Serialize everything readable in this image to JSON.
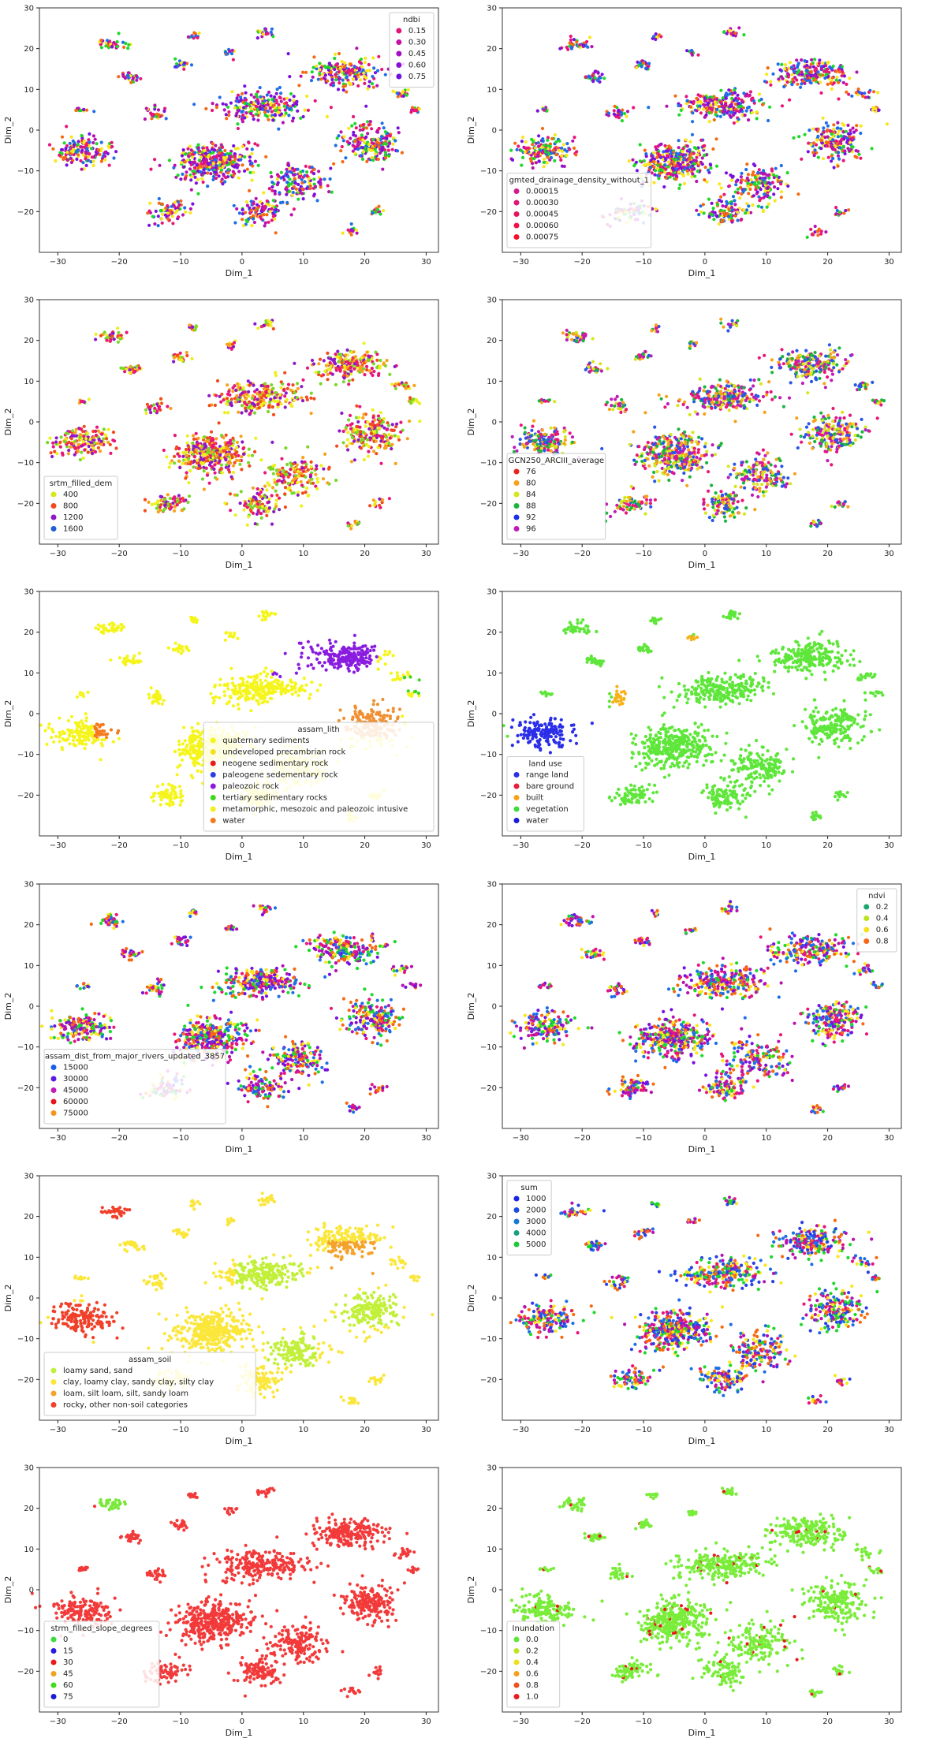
{
  "chart_data": [
    {
      "type": "scatter",
      "xlabel": "Dim_1",
      "ylabel": "Dim_2",
      "xlim": [
        -33,
        32
      ],
      "ylim": [
        -30,
        30
      ],
      "xticks": [
        -30,
        -20,
        -10,
        0,
        10,
        20,
        30
      ],
      "yticks": [
        -20,
        -10,
        0,
        10,
        20,
        30
      ],
      "legend": {
        "title": "ndbi",
        "placement": "top-right",
        "entries": [
          {
            "label": "0.15",
            "color": "#e0157a"
          },
          {
            "label": "0.30",
            "color": "#c411a8"
          },
          {
            "label": "0.45",
            "color": "#a30fc4"
          },
          {
            "label": "0.60",
            "color": "#8a10d8"
          },
          {
            "label": "0.75",
            "color": "#7210e0"
          }
        ]
      },
      "coloring": "mixed",
      "palette": [
        "#e8157a",
        "#b612b0",
        "#7a10e0",
        "#f7e71c",
        "#1fd82a",
        "#1e6ee8",
        "#f56a10"
      ]
    },
    {
      "type": "scatter",
      "xlabel": "Dim_1",
      "ylabel": "Dim_2",
      "xlim": [
        -33,
        32
      ],
      "ylim": [
        -30,
        30
      ],
      "xticks": [
        -30,
        -20,
        -10,
        0,
        10,
        20,
        30
      ],
      "yticks": [
        -20,
        -10,
        0,
        10,
        20,
        30
      ],
      "legend": {
        "title": "gmted_drainage_density_without_1",
        "placement": "lower-left",
        "entries": [
          {
            "label": "0.00015",
            "color": "#d01a8c"
          },
          {
            "label": "0.00030",
            "color": "#dc1776"
          },
          {
            "label": "0.00045",
            "color": "#e5145f"
          },
          {
            "label": "0.00060",
            "color": "#ee1248"
          },
          {
            "label": "0.00075",
            "color": "#f5102e"
          }
        ]
      },
      "coloring": "mixed",
      "palette": [
        "#e8157a",
        "#b612b0",
        "#7a10e0",
        "#f7e71c",
        "#1fd82a",
        "#1e6ee8",
        "#f56a10"
      ]
    },
    {
      "type": "scatter",
      "xlabel": "Dim_1",
      "ylabel": "Dim_2",
      "xlim": [
        -33,
        32
      ],
      "ylim": [
        -30,
        30
      ],
      "xticks": [
        -30,
        -20,
        -10,
        0,
        10,
        20,
        30
      ],
      "yticks": [
        -20,
        -10,
        0,
        10,
        20,
        30
      ],
      "legend": {
        "title": "srtm_filled_dem",
        "placement": "lower-left",
        "entries": [
          {
            "label": "400",
            "color": "#d4e81a"
          },
          {
            "label": "800",
            "color": "#f24a1a"
          },
          {
            "label": "1200",
            "color": "#8d18c8"
          },
          {
            "label": "1600",
            "color": "#1f5cd8"
          }
        ]
      },
      "coloring": "mixed",
      "palette": [
        "#ecf01c",
        "#f24a1a",
        "#e8157a",
        "#8d18c8",
        "#f7a21a",
        "#7ad82a"
      ]
    },
    {
      "type": "scatter",
      "xlabel": "Dim_1",
      "ylabel": "Dim_2",
      "xlim": [
        -33,
        32
      ],
      "ylim": [
        -30,
        30
      ],
      "xticks": [
        -30,
        -20,
        -10,
        0,
        10,
        20,
        30
      ],
      "yticks": [
        -20,
        -10,
        0,
        10,
        20,
        30
      ],
      "legend": {
        "title": "GCN250_ARCIII_average",
        "placement": "lower-left",
        "entries": [
          {
            "label": "76",
            "color": "#e8231c"
          },
          {
            "label": "80",
            "color": "#f7a21a"
          },
          {
            "label": "84",
            "color": "#d6e61c"
          },
          {
            "label": "88",
            "color": "#1db43e"
          },
          {
            "label": "92",
            "color": "#1a2ee8"
          },
          {
            "label": "96",
            "color": "#c01ab8"
          }
        ]
      },
      "coloring": "mixed",
      "palette": [
        "#2a56e8",
        "#f7a21a",
        "#e8157a",
        "#1db43e",
        "#d6e61c",
        "#c01ab8"
      ]
    },
    {
      "type": "scatter",
      "xlabel": "Dim_1",
      "ylabel": "Dim_2",
      "xlim": [
        -33,
        32
      ],
      "ylim": [
        -30,
        30
      ],
      "xticks": [
        -30,
        -20,
        -10,
        0,
        10,
        20,
        30
      ],
      "yticks": [
        -20,
        -10,
        0,
        10,
        20,
        30
      ],
      "legend": {
        "title": "assam_lith",
        "placement": "lower-right",
        "entries": [
          {
            "label": "quaternary sediments",
            "color": "#f5f51c"
          },
          {
            "label": "undeveloped precambrian rock",
            "color": "#f2e11c"
          },
          {
            "label": "neogene sedimentary rock",
            "color": "#e81c1c"
          },
          {
            "label": "paleogene sedementary rock",
            "color": "#2a3ee8"
          },
          {
            "label": "paleozoic rock",
            "color": "#8a1ce0"
          },
          {
            "label": "tertiary sedimentary rocks",
            "color": "#3cd81c"
          },
          {
            "label": "metamorphic, mesozoic and paleozoic intusive",
            "color": "#f0f01c"
          },
          {
            "label": "water",
            "color": "#f57a1c"
          }
        ]
      },
      "coloring": "regions",
      "default": "#f5f51c",
      "regions": [
        {
          "color": "#8a1ce0",
          "cx": [
            5,
            22
          ],
          "cy": [
            9,
            24
          ]
        },
        {
          "color": "#f09032",
          "cx": [
            15,
            26
          ],
          "cy": [
            -6,
            8
          ]
        },
        {
          "color": "#3cd81c",
          "cx": [
            26,
            30
          ],
          "cy": [
            5,
            9
          ]
        },
        {
          "color": "#f57a1c",
          "cx": [
            -24,
            -20
          ],
          "cy": [
            -6,
            -2
          ]
        }
      ]
    },
    {
      "type": "scatter",
      "xlabel": "Dim_1",
      "ylabel": "Dim_2",
      "xlim": [
        -33,
        32
      ],
      "ylim": [
        -30,
        30
      ],
      "xticks": [
        -30,
        -20,
        -10,
        0,
        10,
        20,
        30
      ],
      "yticks": [
        -20,
        -10,
        0,
        10,
        20,
        30
      ],
      "legend": {
        "title": "land use",
        "placement": "lower-left",
        "entries": [
          {
            "label": "range land",
            "color": "#2a2ee8"
          },
          {
            "label": "bare ground",
            "color": "#e81c3c"
          },
          {
            "label": "built",
            "color": "#f7a21a"
          },
          {
            "label": "vegetation",
            "color": "#3cdc3c"
          },
          {
            "label": "water",
            "color": "#1a1ad8"
          }
        ]
      },
      "coloring": "regions",
      "default": "#5ee63a",
      "regions": [
        {
          "color": "#2a2ee8",
          "cx": [
            -32,
            -18
          ],
          "cy": [
            -10,
            1
          ]
        },
        {
          "color": "#f7b21a",
          "cx": [
            -15,
            -8
          ],
          "cy": [
            2,
            8
          ]
        },
        {
          "color": "#f7b21a",
          "cx": [
            -4,
            0
          ],
          "cy": [
            14,
            19
          ]
        },
        {
          "color": "#e81c5c",
          "cx": [
            -24,
            -19
          ],
          "cy": [
            8,
            12
          ]
        }
      ]
    },
    {
      "type": "scatter",
      "xlabel": "Dim_1",
      "ylabel": "Dim_2",
      "xlim": [
        -33,
        32
      ],
      "ylim": [
        -30,
        30
      ],
      "xticks": [
        -30,
        -20,
        -10,
        0,
        10,
        20,
        30
      ],
      "yticks": [
        -20,
        -10,
        0,
        10,
        20,
        30
      ],
      "legend": {
        "title": "assam_dist_from_major_rivers_updated_3857",
        "placement": "lower-left",
        "entries": [
          {
            "label": "15000",
            "color": "#1a5ee8"
          },
          {
            "label": "30000",
            "color": "#5a1ae8"
          },
          {
            "label": "45000",
            "color": "#c01ab8"
          },
          {
            "label": "60000",
            "color": "#e8141c"
          },
          {
            "label": "75000",
            "color": "#f7921a"
          }
        ]
      },
      "coloring": "mixed",
      "palette": [
        "#e8157a",
        "#b612b0",
        "#7a10e0",
        "#f7e71c",
        "#1fd82a",
        "#1e6ee8",
        "#f56a10"
      ]
    },
    {
      "type": "scatter",
      "xlabel": "Dim_1",
      "ylabel": "Dim_2",
      "xlim": [
        -33,
        32
      ],
      "ylim": [
        -30,
        30
      ],
      "xticks": [
        -30,
        -20,
        -10,
        0,
        10,
        20,
        30
      ],
      "yticks": [
        -20,
        -10,
        0,
        10,
        20,
        30
      ],
      "legend": {
        "title": "ndvi",
        "placement": "top-right",
        "entries": [
          {
            "label": "0.2",
            "color": "#1aa86e"
          },
          {
            "label": "0.4",
            "color": "#b8e41c"
          },
          {
            "label": "0.6",
            "color": "#f7e01c"
          },
          {
            "label": "0.8",
            "color": "#f5661a"
          }
        ]
      },
      "coloring": "mixed",
      "palette": [
        "#e8157a",
        "#b612b0",
        "#7a10e0",
        "#f7e71c",
        "#1fd82a",
        "#1e6ee8",
        "#f56a10"
      ]
    },
    {
      "type": "scatter",
      "xlabel": "Dim_1",
      "ylabel": "Dim_2",
      "xlim": [
        -33,
        32
      ],
      "ylim": [
        -30,
        30
      ],
      "xticks": [
        -30,
        -20,
        -10,
        0,
        10,
        20,
        30
      ],
      "yticks": [
        -20,
        -10,
        0,
        10,
        20,
        30
      ],
      "legend": {
        "title": "assam_soil",
        "placement": "lower-left",
        "entries": [
          {
            "label": "loamy sand, sand",
            "color": "#c2f03a"
          },
          {
            "label": "clay, loamy clay, sandy clay, silty clay",
            "color": "#fbe63a"
          },
          {
            "label": "loam, silt loam, silt, sandy loam",
            "color": "#f5a22a"
          },
          {
            "label": "rocky, other non-soil categories",
            "color": "#f0402a"
          }
        ]
      },
      "coloring": "regions",
      "default": "#fbe63a",
      "regions": [
        {
          "color": "#c2f03a",
          "cx": [
            -1,
            10
          ],
          "cy": [
            1,
            10
          ]
        },
        {
          "color": "#c2f03a",
          "cx": [
            15,
            26
          ],
          "cy": [
            -7,
            2
          ]
        },
        {
          "color": "#c2f03a",
          "cx": [
            4,
            12
          ],
          "cy": [
            -17,
            -8
          ]
        },
        {
          "color": "#f0402a",
          "cx": [
            -31,
            -19
          ],
          "cy": [
            -10,
            -1
          ]
        },
        {
          "color": "#f5a22a",
          "cx": [
            14,
            22
          ],
          "cy": [
            5,
            14
          ]
        },
        {
          "color": "#f0402a",
          "cx": [
            -24,
            -18
          ],
          "cy": [
            18,
            23
          ]
        }
      ]
    },
    {
      "type": "scatter",
      "xlabel": "Dim_1",
      "ylabel": "Dim_2",
      "xlim": [
        -33,
        32
      ],
      "ylim": [
        -30,
        30
      ],
      "xticks": [
        -30,
        -20,
        -10,
        0,
        10,
        20,
        30
      ],
      "yticks": [
        -20,
        -10,
        0,
        10,
        20,
        30
      ],
      "legend": {
        "title": "sum",
        "placement": "top-left",
        "entries": [
          {
            "label": "1000",
            "color": "#1a24e8"
          },
          {
            "label": "2000",
            "color": "#1a4ce0"
          },
          {
            "label": "3000",
            "color": "#1a7ad0"
          },
          {
            "label": "4000",
            "color": "#1a9e7e"
          },
          {
            "label": "5000",
            "color": "#1ec83c"
          }
        ]
      },
      "coloring": "mixed",
      "palette": [
        "#e8157a",
        "#b612b0",
        "#2a3ee8",
        "#f7e71c",
        "#1fd82a",
        "#1e6ee8",
        "#f56a10"
      ]
    },
    {
      "type": "scatter",
      "xlabel": "Dim_1",
      "ylabel": "Dim_2",
      "xlim": [
        -33,
        32
      ],
      "ylim": [
        -30,
        30
      ],
      "xticks": [
        -30,
        -20,
        -10,
        0,
        10,
        20,
        30
      ],
      "yticks": [
        -20,
        -10,
        0,
        10,
        20,
        30
      ],
      "legend": {
        "title": "strm_filled_slope_degrees",
        "placement": "lower-left",
        "entries": [
          {
            "label": "0",
            "color": "#3cdc3c"
          },
          {
            "label": "15",
            "color": "#2a1ae8"
          },
          {
            "label": "30",
            "color": "#e81c1c"
          },
          {
            "label": "45",
            "color": "#f0a21c"
          },
          {
            "label": "60",
            "color": "#3cdc1c"
          },
          {
            "label": "75",
            "color": "#1a1ad8"
          }
        ]
      },
      "coloring": "regions",
      "default": "#f23a3a",
      "regions": [
        {
          "color": "#7ae83a",
          "cx": [
            -24,
            -18
          ],
          "cy": [
            18,
            23
          ]
        }
      ]
    },
    {
      "type": "scatter",
      "xlabel": "Dim_1",
      "ylabel": "Dim_2",
      "xlim": [
        -33,
        32
      ],
      "ylim": [
        -30,
        30
      ],
      "xticks": [
        -30,
        -20,
        -10,
        0,
        10,
        20,
        30
      ],
      "yticks": [
        -20,
        -10,
        0,
        10,
        20,
        30
      ],
      "legend": {
        "title": "Inundation",
        "placement": "lower-left",
        "entries": [
          {
            "label": "0.0",
            "color": "#5ee63a"
          },
          {
            "label": "0.2",
            "color": "#bce61c"
          },
          {
            "label": "0.4",
            "color": "#f0e01c"
          },
          {
            "label": "0.6",
            "color": "#f5a01a"
          },
          {
            "label": "0.8",
            "color": "#f0501a"
          },
          {
            "label": "1.0",
            "color": "#e81a1a"
          }
        ]
      },
      "coloring": "regions",
      "default": "#7aec3a",
      "sparse": "#e81a1a",
      "regions": []
    }
  ]
}
